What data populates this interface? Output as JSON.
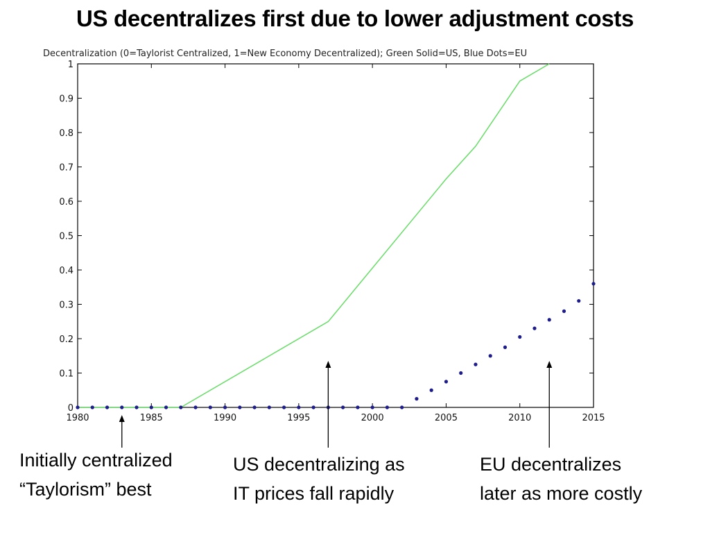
{
  "slide": {
    "title": "US decentralizes first due to lower adjustment costs"
  },
  "annotations": [
    {
      "id": "initial",
      "lines": [
        "Initially centralized",
        "“Taylorism” best"
      ],
      "arrow_x": 1983
    },
    {
      "id": "us",
      "lines": [
        "US decentralizing as",
        "IT prices fall rapidly"
      ],
      "arrow_x": 1997
    },
    {
      "id": "eu",
      "lines": [
        "EU decentralizes",
        "later as more costly"
      ],
      "arrow_x": 2012
    }
  ],
  "chart_data": {
    "type": "line",
    "title": "Decentralization (0=Taylorist Centralized, 1=New Economy Decentralized); Green Solid=US, Blue Dots=EU",
    "xlabel": "",
    "ylabel": "",
    "xlim": [
      1980,
      2015
    ],
    "ylim": [
      0,
      1
    ],
    "xticks": [
      1980,
      1985,
      1990,
      1995,
      2000,
      2005,
      2010,
      2015
    ],
    "yticks": [
      0,
      0.1,
      0.2,
      0.3,
      0.4,
      0.5,
      0.6,
      0.7,
      0.8,
      0.9,
      1
    ],
    "grid": false,
    "series": [
      {
        "name": "US",
        "style": "solid-line",
        "color": "#66dd66",
        "x": [
          1980,
          1987,
          1997,
          2005,
          2007,
          2010,
          2012
        ],
        "y": [
          0,
          0,
          0.25,
          0.665,
          0.76,
          0.95,
          1.0
        ]
      },
      {
        "name": "EU",
        "style": "dots",
        "color": "#1c1c8c",
        "x": [
          1980,
          1981,
          1982,
          1983,
          1984,
          1985,
          1986,
          1987,
          1988,
          1989,
          1990,
          1991,
          1992,
          1993,
          1994,
          1995,
          1996,
          1997,
          1998,
          1999,
          2000,
          2001,
          2002,
          2003,
          2004,
          2005,
          2006,
          2007,
          2008,
          2009,
          2010,
          2011,
          2012,
          2013,
          2014,
          2015
        ],
        "y": [
          0,
          0,
          0,
          0,
          0,
          0,
          0,
          0,
          0,
          0,
          0,
          0,
          0,
          0,
          0,
          0,
          0,
          0,
          0,
          0,
          0,
          0,
          0,
          0.025,
          0.05,
          0.075,
          0.1,
          0.125,
          0.15,
          0.175,
          0.205,
          0.23,
          0.255,
          0.28,
          0.31,
          0.36
        ]
      }
    ]
  }
}
